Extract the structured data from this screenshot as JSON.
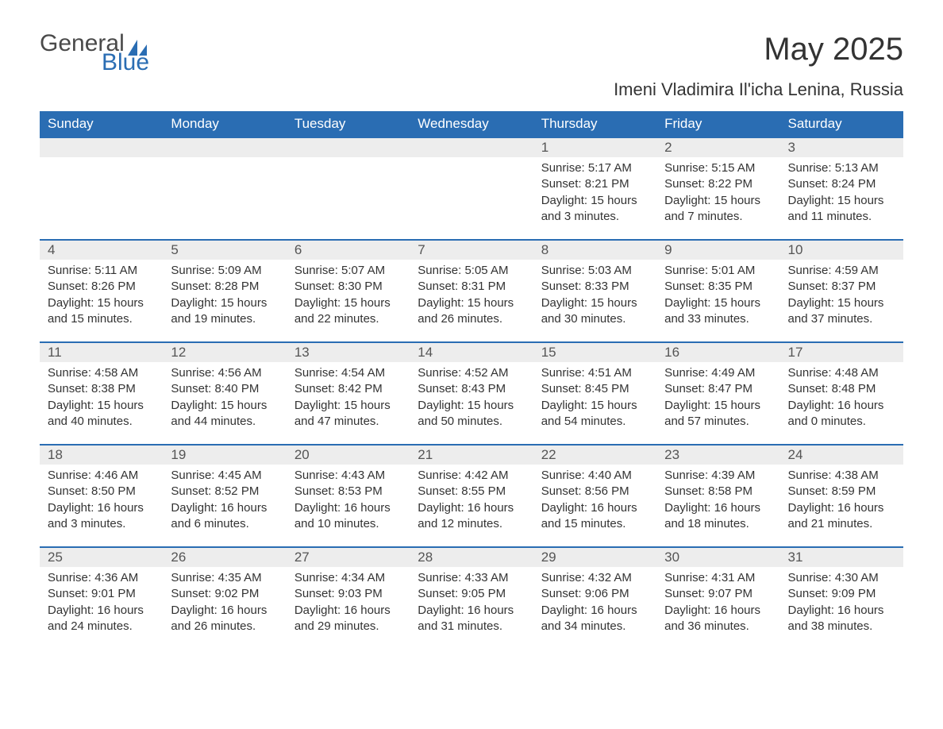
{
  "logo": {
    "word1": "General",
    "word2": "Blue",
    "shape_color": "#2a6db3",
    "word1_color": "#4a4a4a"
  },
  "title": "May 2025",
  "subtitle": "Imeni Vladimira Il'icha Lenina, Russia",
  "header_bg": "#2a6db3",
  "header_fg": "#ffffff",
  "daynum_bg": "#ededed",
  "row_divider": "#2a6db3",
  "text_color": "#333333",
  "columns": [
    "Sunday",
    "Monday",
    "Tuesday",
    "Wednesday",
    "Thursday",
    "Friday",
    "Saturday"
  ],
  "weeks": [
    [
      {
        "n": "",
        "sunrise": "",
        "sunset": "",
        "daylight": ""
      },
      {
        "n": "",
        "sunrise": "",
        "sunset": "",
        "daylight": ""
      },
      {
        "n": "",
        "sunrise": "",
        "sunset": "",
        "daylight": ""
      },
      {
        "n": "",
        "sunrise": "",
        "sunset": "",
        "daylight": ""
      },
      {
        "n": "1",
        "sunrise": "Sunrise: 5:17 AM",
        "sunset": "Sunset: 8:21 PM",
        "daylight": "Daylight: 15 hours and 3 minutes."
      },
      {
        "n": "2",
        "sunrise": "Sunrise: 5:15 AM",
        "sunset": "Sunset: 8:22 PM",
        "daylight": "Daylight: 15 hours and 7 minutes."
      },
      {
        "n": "3",
        "sunrise": "Sunrise: 5:13 AM",
        "sunset": "Sunset: 8:24 PM",
        "daylight": "Daylight: 15 hours and 11 minutes."
      }
    ],
    [
      {
        "n": "4",
        "sunrise": "Sunrise: 5:11 AM",
        "sunset": "Sunset: 8:26 PM",
        "daylight": "Daylight: 15 hours and 15 minutes."
      },
      {
        "n": "5",
        "sunrise": "Sunrise: 5:09 AM",
        "sunset": "Sunset: 8:28 PM",
        "daylight": "Daylight: 15 hours and 19 minutes."
      },
      {
        "n": "6",
        "sunrise": "Sunrise: 5:07 AM",
        "sunset": "Sunset: 8:30 PM",
        "daylight": "Daylight: 15 hours and 22 minutes."
      },
      {
        "n": "7",
        "sunrise": "Sunrise: 5:05 AM",
        "sunset": "Sunset: 8:31 PM",
        "daylight": "Daylight: 15 hours and 26 minutes."
      },
      {
        "n": "8",
        "sunrise": "Sunrise: 5:03 AM",
        "sunset": "Sunset: 8:33 PM",
        "daylight": "Daylight: 15 hours and 30 minutes."
      },
      {
        "n": "9",
        "sunrise": "Sunrise: 5:01 AM",
        "sunset": "Sunset: 8:35 PM",
        "daylight": "Daylight: 15 hours and 33 minutes."
      },
      {
        "n": "10",
        "sunrise": "Sunrise: 4:59 AM",
        "sunset": "Sunset: 8:37 PM",
        "daylight": "Daylight: 15 hours and 37 minutes."
      }
    ],
    [
      {
        "n": "11",
        "sunrise": "Sunrise: 4:58 AM",
        "sunset": "Sunset: 8:38 PM",
        "daylight": "Daylight: 15 hours and 40 minutes."
      },
      {
        "n": "12",
        "sunrise": "Sunrise: 4:56 AM",
        "sunset": "Sunset: 8:40 PM",
        "daylight": "Daylight: 15 hours and 44 minutes."
      },
      {
        "n": "13",
        "sunrise": "Sunrise: 4:54 AM",
        "sunset": "Sunset: 8:42 PM",
        "daylight": "Daylight: 15 hours and 47 minutes."
      },
      {
        "n": "14",
        "sunrise": "Sunrise: 4:52 AM",
        "sunset": "Sunset: 8:43 PM",
        "daylight": "Daylight: 15 hours and 50 minutes."
      },
      {
        "n": "15",
        "sunrise": "Sunrise: 4:51 AM",
        "sunset": "Sunset: 8:45 PM",
        "daylight": "Daylight: 15 hours and 54 minutes."
      },
      {
        "n": "16",
        "sunrise": "Sunrise: 4:49 AM",
        "sunset": "Sunset: 8:47 PM",
        "daylight": "Daylight: 15 hours and 57 minutes."
      },
      {
        "n": "17",
        "sunrise": "Sunrise: 4:48 AM",
        "sunset": "Sunset: 8:48 PM",
        "daylight": "Daylight: 16 hours and 0 minutes."
      }
    ],
    [
      {
        "n": "18",
        "sunrise": "Sunrise: 4:46 AM",
        "sunset": "Sunset: 8:50 PM",
        "daylight": "Daylight: 16 hours and 3 minutes."
      },
      {
        "n": "19",
        "sunrise": "Sunrise: 4:45 AM",
        "sunset": "Sunset: 8:52 PM",
        "daylight": "Daylight: 16 hours and 6 minutes."
      },
      {
        "n": "20",
        "sunrise": "Sunrise: 4:43 AM",
        "sunset": "Sunset: 8:53 PM",
        "daylight": "Daylight: 16 hours and 10 minutes."
      },
      {
        "n": "21",
        "sunrise": "Sunrise: 4:42 AM",
        "sunset": "Sunset: 8:55 PM",
        "daylight": "Daylight: 16 hours and 12 minutes."
      },
      {
        "n": "22",
        "sunrise": "Sunrise: 4:40 AM",
        "sunset": "Sunset: 8:56 PM",
        "daylight": "Daylight: 16 hours and 15 minutes."
      },
      {
        "n": "23",
        "sunrise": "Sunrise: 4:39 AM",
        "sunset": "Sunset: 8:58 PM",
        "daylight": "Daylight: 16 hours and 18 minutes."
      },
      {
        "n": "24",
        "sunrise": "Sunrise: 4:38 AM",
        "sunset": "Sunset: 8:59 PM",
        "daylight": "Daylight: 16 hours and 21 minutes."
      }
    ],
    [
      {
        "n": "25",
        "sunrise": "Sunrise: 4:36 AM",
        "sunset": "Sunset: 9:01 PM",
        "daylight": "Daylight: 16 hours and 24 minutes."
      },
      {
        "n": "26",
        "sunrise": "Sunrise: 4:35 AM",
        "sunset": "Sunset: 9:02 PM",
        "daylight": "Daylight: 16 hours and 26 minutes."
      },
      {
        "n": "27",
        "sunrise": "Sunrise: 4:34 AM",
        "sunset": "Sunset: 9:03 PM",
        "daylight": "Daylight: 16 hours and 29 minutes."
      },
      {
        "n": "28",
        "sunrise": "Sunrise: 4:33 AM",
        "sunset": "Sunset: 9:05 PM",
        "daylight": "Daylight: 16 hours and 31 minutes."
      },
      {
        "n": "29",
        "sunrise": "Sunrise: 4:32 AM",
        "sunset": "Sunset: 9:06 PM",
        "daylight": "Daylight: 16 hours and 34 minutes."
      },
      {
        "n": "30",
        "sunrise": "Sunrise: 4:31 AM",
        "sunset": "Sunset: 9:07 PM",
        "daylight": "Daylight: 16 hours and 36 minutes."
      },
      {
        "n": "31",
        "sunrise": "Sunrise: 4:30 AM",
        "sunset": "Sunset: 9:09 PM",
        "daylight": "Daylight: 16 hours and 38 minutes."
      }
    ]
  ]
}
